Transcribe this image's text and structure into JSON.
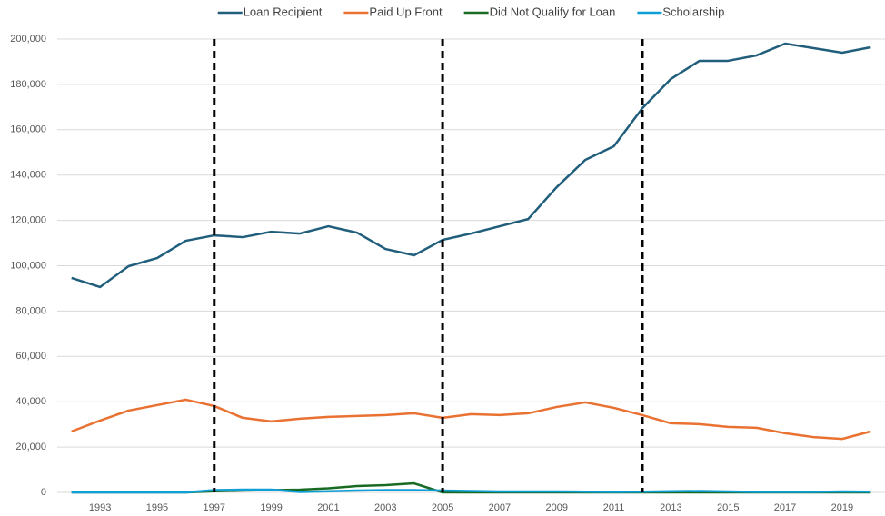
{
  "chart_data": {
    "type": "line",
    "x": [
      1992,
      1993,
      1994,
      1995,
      1996,
      1997,
      1998,
      1999,
      2000,
      2001,
      2002,
      2003,
      2004,
      2005,
      2006,
      2007,
      2008,
      2009,
      2010,
      2011,
      2012,
      2013,
      2014,
      2015,
      2016,
      2017,
      2018,
      2019,
      2020
    ],
    "xlim": [
      1991.5,
      2020.5
    ],
    "xticks": [
      1993,
      1995,
      1997,
      1999,
      2001,
      2003,
      2005,
      2007,
      2009,
      2011,
      2013,
      2015,
      2017,
      2019
    ],
    "ylim": [
      0,
      200000
    ],
    "yticks": [
      0,
      {
        "value": 20000,
        "label": "20,000"
      },
      {
        "value": 40000,
        "label": "40,000"
      },
      {
        "value": 60000,
        "label": "60,000"
      },
      {
        "value": 80000,
        "label": "80,000"
      },
      {
        "value": 100000,
        "label": "100,000"
      },
      {
        "value": 120000,
        "label": "120,000"
      },
      {
        "value": 140000,
        "label": "140,000"
      },
      {
        "value": 160000,
        "label": "160,000"
      },
      {
        "value": 180000,
        "label": "180,000"
      },
      {
        "value": 200000,
        "label": "200,000"
      }
    ],
    "grid": true,
    "legend": "top",
    "vlines": [
      1997,
      2005,
      2012
    ],
    "vline_color": "#000000",
    "series": [
      {
        "name": "Loan Recipient",
        "color": "#205e7c",
        "values": [
          94600,
          90600,
          99800,
          103400,
          111000,
          113400,
          112600,
          115000,
          114200,
          117400,
          114600,
          107400,
          104600,
          111400,
          114200,
          117400,
          120600,
          134700,
          146700,
          152700,
          169500,
          182400,
          190400,
          190400,
          192800,
          198000,
          196000,
          194000,
          196400
        ]
      },
      {
        "name": "Paid Up Front",
        "color": "#e97132",
        "values": [
          26900,
          31700,
          36100,
          38500,
          40900,
          38100,
          32900,
          31300,
          32500,
          33300,
          33700,
          34100,
          34900,
          32900,
          34500,
          34100,
          34900,
          37700,
          39700,
          37300,
          34100,
          30500,
          30100,
          28900,
          28500,
          26100,
          24400,
          23600,
          26900
        ]
      },
      {
        "name": "Did Not Qualify for Loan",
        "color": "#196b24",
        "values": [
          0,
          0,
          0,
          0,
          0,
          500,
          800,
          1000,
          1200,
          1800,
          2800,
          3200,
          4000,
          0,
          0,
          0,
          0,
          0,
          0,
          0,
          0,
          0,
          0,
          0,
          0,
          0,
          0,
          0,
          0
        ]
      },
      {
        "name": "Scholarship",
        "color": "#0f9ed5",
        "values": [
          0,
          0,
          0,
          0,
          0,
          1000,
          1200,
          1200,
          200,
          500,
          800,
          1000,
          1000,
          800,
          600,
          400,
          400,
          400,
          300,
          200,
          300,
          500,
          600,
          400,
          200,
          200,
          200,
          400,
          300
        ]
      }
    ]
  }
}
